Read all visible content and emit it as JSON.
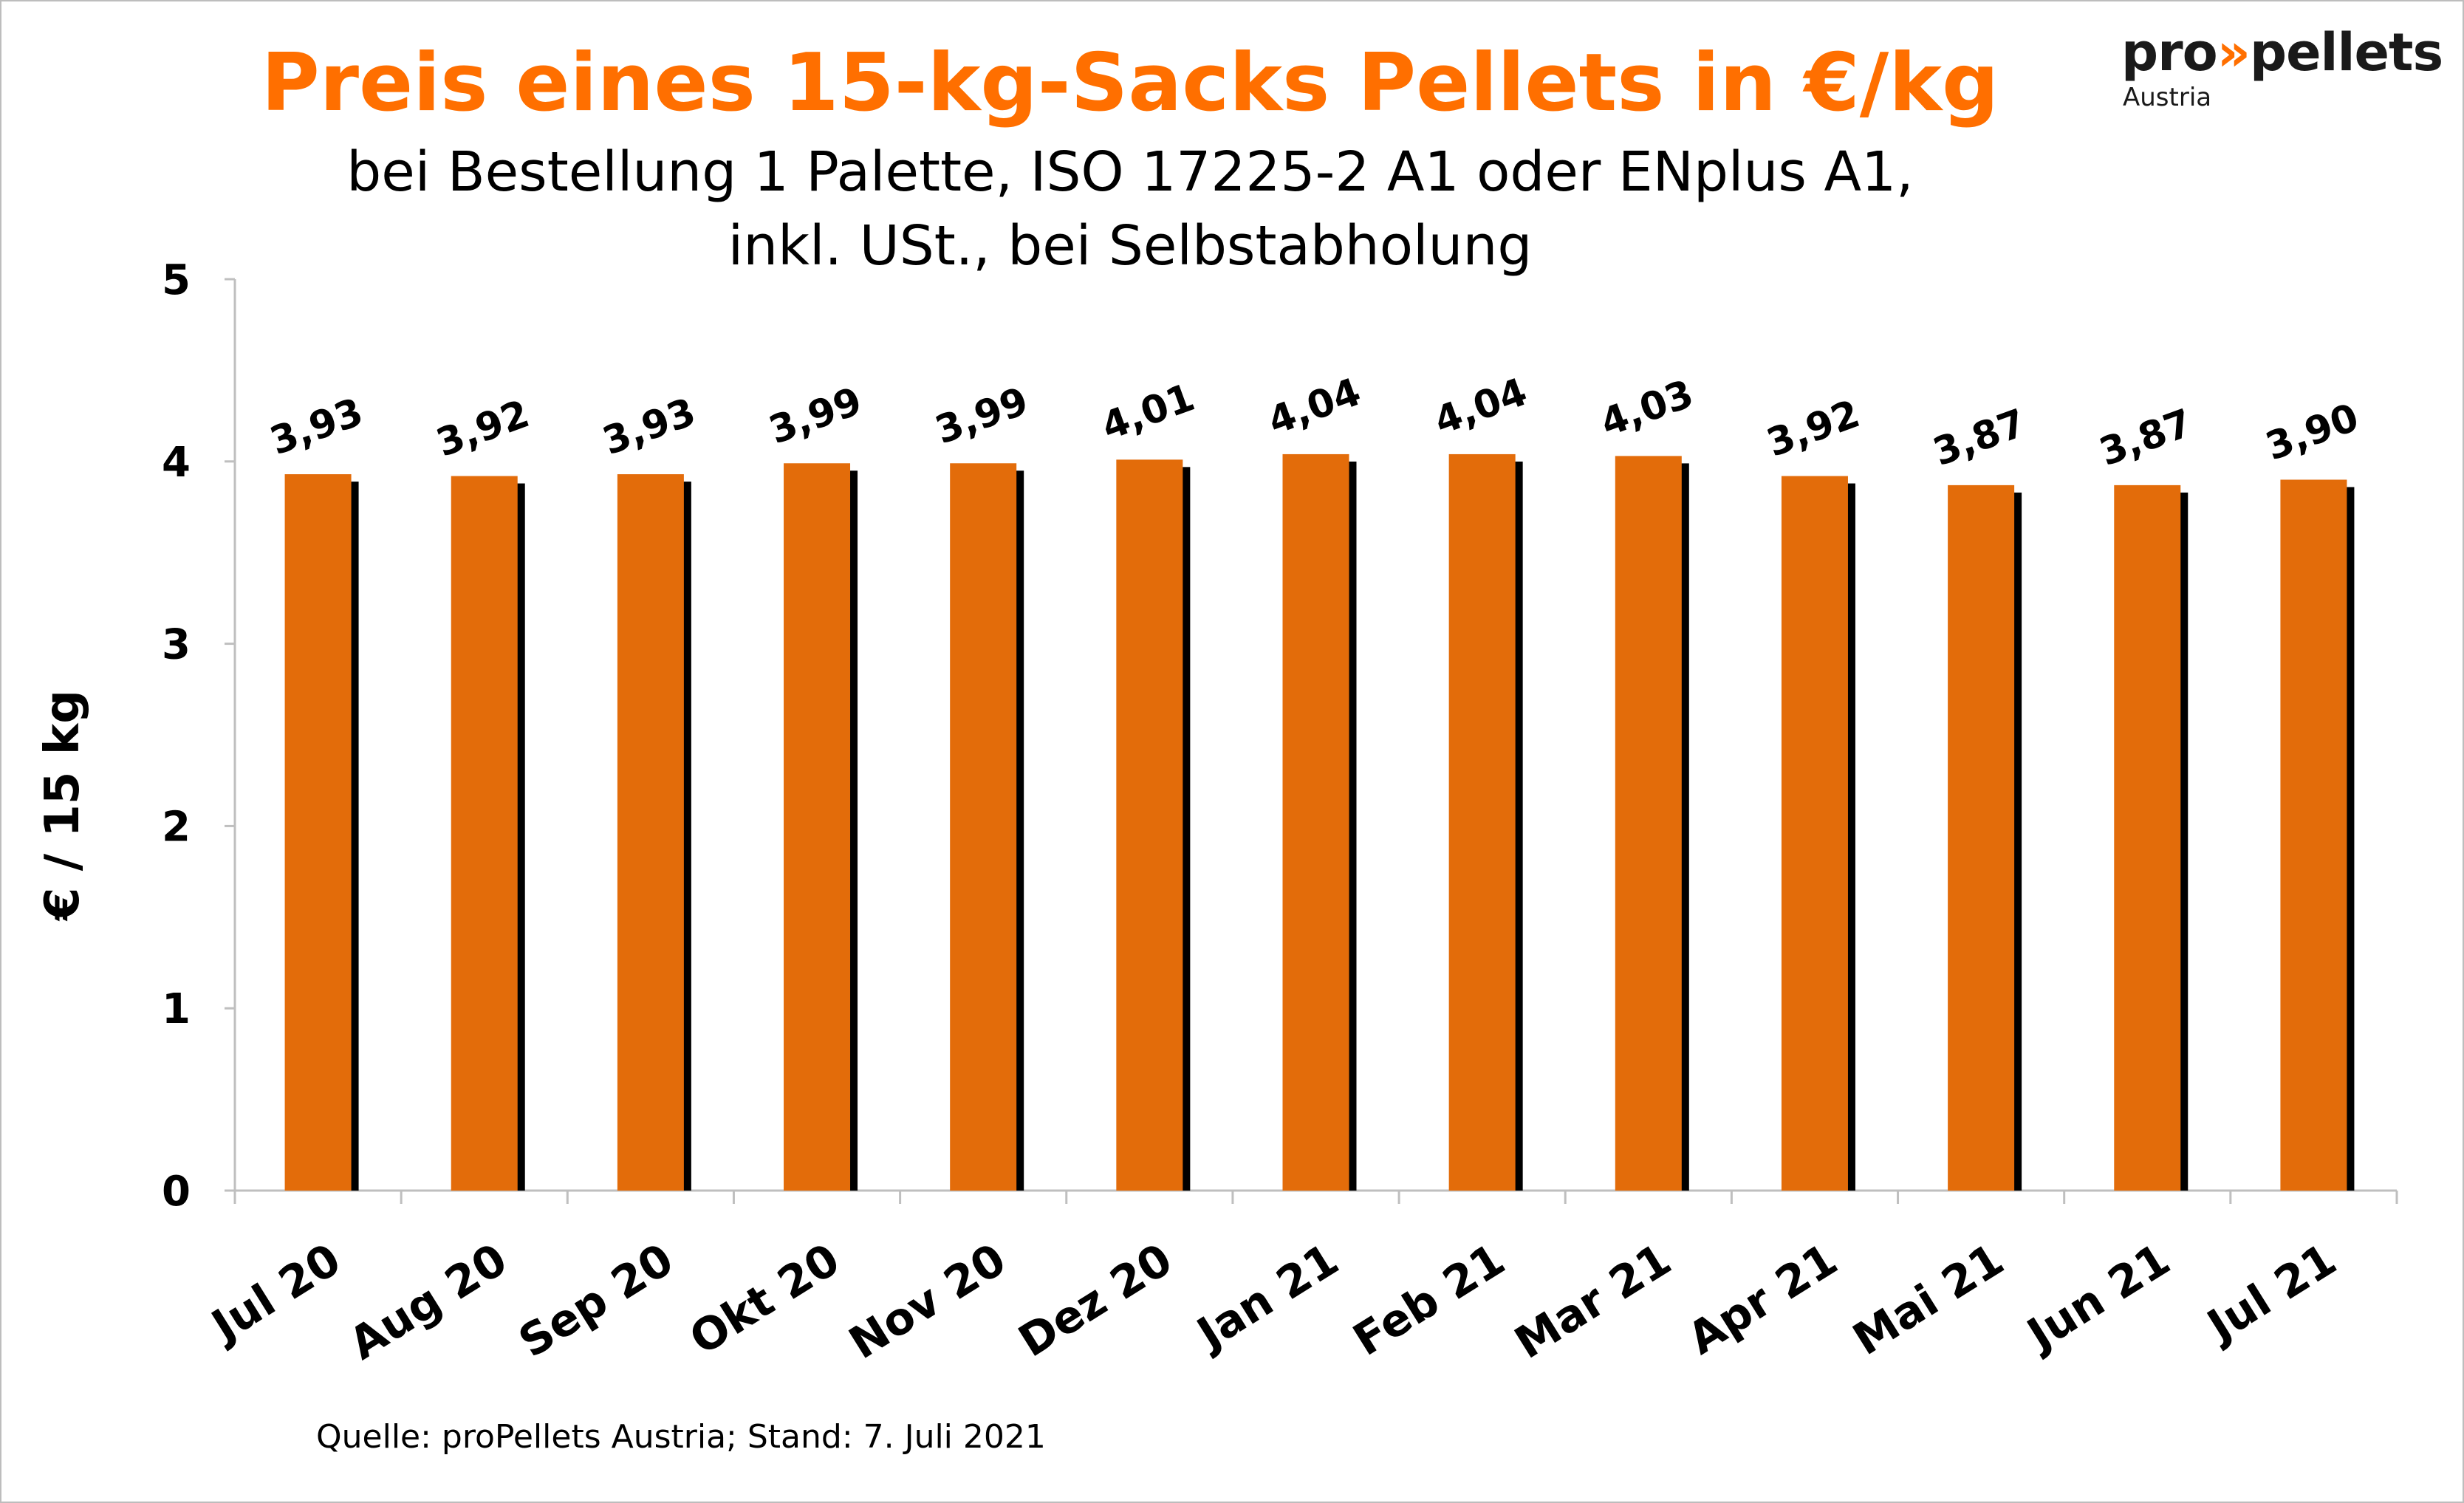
{
  "logo": {
    "brand_left": "pro",
    "brand_arrow": "»",
    "brand_right": "pellets",
    "sub": "Austria"
  },
  "source": "Quelle: proPellets Austria; Stand: 7. Juli 2021",
  "colors": {
    "title": "#ff6f00",
    "bar": "#e36c0a",
    "shadow": "#000000",
    "axis": "#bfbfbf"
  },
  "chart_data": {
    "type": "bar",
    "title": "Preis eines 15-kg-Sacks Pellets in €/kg",
    "subtitle_lines": [
      "bei Bestellung 1 Palette, ISO 17225-2 A1 oder ENplus A1,",
      "inkl. USt., bei Selbstabholung"
    ],
    "xlabel": "",
    "ylabel": "€ / 15 kg",
    "ylim": [
      0,
      5
    ],
    "yticks": [
      0,
      1,
      2,
      3,
      4,
      5
    ],
    "grid": false,
    "categories": [
      "Jul 20",
      "Aug 20",
      "Sep 20",
      "Okt 20",
      "Nov 20",
      "Dez 20",
      "Jan 21",
      "Feb 21",
      "Mar 21",
      "Apr 21",
      "Mai 21",
      "Jun 21",
      "Jul 21"
    ],
    "values": [
      3.93,
      3.92,
      3.93,
      3.99,
      3.99,
      4.01,
      4.04,
      4.04,
      4.03,
      3.92,
      3.87,
      3.87,
      3.9
    ],
    "data_labels": [
      "3,93",
      "3,92",
      "3,93",
      "3,99",
      "3,99",
      "4,01",
      "4,04",
      "4,04",
      "4,03",
      "3,92",
      "3,87",
      "3,87",
      "3,90"
    ]
  }
}
